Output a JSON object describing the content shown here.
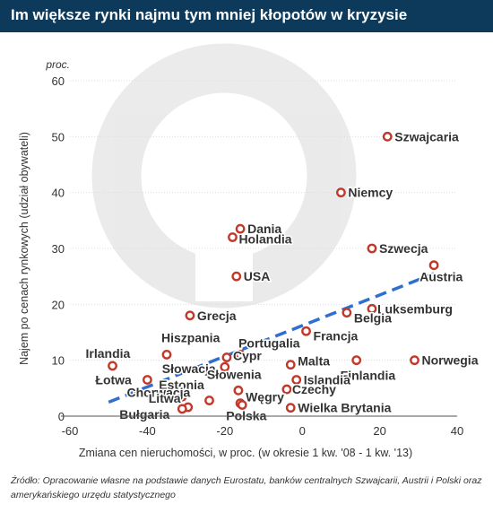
{
  "header": {
    "title": "Im większe rynki najmu tym mniej kłopotów w kryzysie"
  },
  "footer": {
    "source": "Źródło: Opracowanie własne na podstawie danych Eurostatu, banków centralnych Szwajcarii, Austrii i Polski oraz amerykańskiego urzędu statystycznego"
  },
  "colors": {
    "header_bg": "#0d3a5a",
    "marker": "#c0392b",
    "trend": "#2e6fd0",
    "text": "#333333"
  },
  "chart_data": {
    "type": "scatter",
    "title": "Im większe rynki najmu tym mniej kłopotów w kryzysie",
    "xlabel": "Zmiana cen nieruchomości, w proc. (w okresie 1 kw. '08 - 1 kw. '13)",
    "ylabel": "Najem po cenach rynkowych (udział obywateli)",
    "yunit": "proc.",
    "xlim": [
      -60,
      40
    ],
    "ylim": [
      0,
      60
    ],
    "xticks": [
      "-60",
      "-40",
      "-20",
      "0",
      "20",
      "40"
    ],
    "yticks": [
      "0",
      "10",
      "20",
      "30",
      "40",
      "50",
      "60"
    ],
    "grid": "horizontal",
    "trendline": {
      "x": [
        -50,
        34
      ],
      "y": [
        2.5,
        25.5
      ],
      "style": "dashed"
    },
    "points": [
      {
        "label": "Szwajcaria",
        "x": 22,
        "y": 50
      },
      {
        "label": "Niemcy",
        "x": 10,
        "y": 40
      },
      {
        "label": "Dania",
        "x": -16,
        "y": 33.5
      },
      {
        "label": "Holandia",
        "x": -18,
        "y": 32
      },
      {
        "label": "Szwecja",
        "x": 18,
        "y": 30
      },
      {
        "label": "Austria",
        "x": 34,
        "y": 27
      },
      {
        "label": "USA",
        "x": -17,
        "y": 25
      },
      {
        "label": "Luksemburg",
        "x": 18,
        "y": 19.2
      },
      {
        "label": "Belgia",
        "x": 11.5,
        "y": 18.5
      },
      {
        "label": "Grecja",
        "x": -29,
        "y": 18
      },
      {
        "label": "Francja",
        "x": 1,
        "y": 15.2
      },
      {
        "label": "Portugalia",
        "x": -16,
        "y": 11
      },
      {
        "label": "Hiszpania",
        "x": -35,
        "y": 11
      },
      {
        "label": "Cypr",
        "x": -19.5,
        "y": 10.5
      },
      {
        "label": "Irlandia",
        "x": -49,
        "y": 9
      },
      {
        "label": "Malta",
        "x": -3,
        "y": 9.2
      },
      {
        "label": "Finlandia",
        "x": 14,
        "y": 10
      },
      {
        "label": "Norwegia",
        "x": 29,
        "y": 10
      },
      {
        "label": "Słowacja",
        "x": -20,
        "y": 8.8
      },
      {
        "label": "Łotwa",
        "x": -40,
        "y": 6.5
      },
      {
        "label": "Islandia",
        "x": -1.5,
        "y": 6.5
      },
      {
        "label": "Słowenia",
        "x": -16.5,
        "y": 4.6
      },
      {
        "label": "Czechy",
        "x": -4,
        "y": 4.8
      },
      {
        "label": "Estonia",
        "x": -31,
        "y": 3.5
      },
      {
        "label": "Chorwacja",
        "x": -24,
        "y": 2.8
      },
      {
        "label": "Węgry",
        "x": -16,
        "y": 2.3
      },
      {
        "label": "Litwa",
        "x": -29.5,
        "y": 1.6
      },
      {
        "label": "Bułgaria",
        "x": -31,
        "y": 1.3
      },
      {
        "label": "Polska",
        "x": -15.5,
        "y": 2
      },
      {
        "label": "Wielka Brytania",
        "x": -3,
        "y": 1.5
      }
    ]
  }
}
